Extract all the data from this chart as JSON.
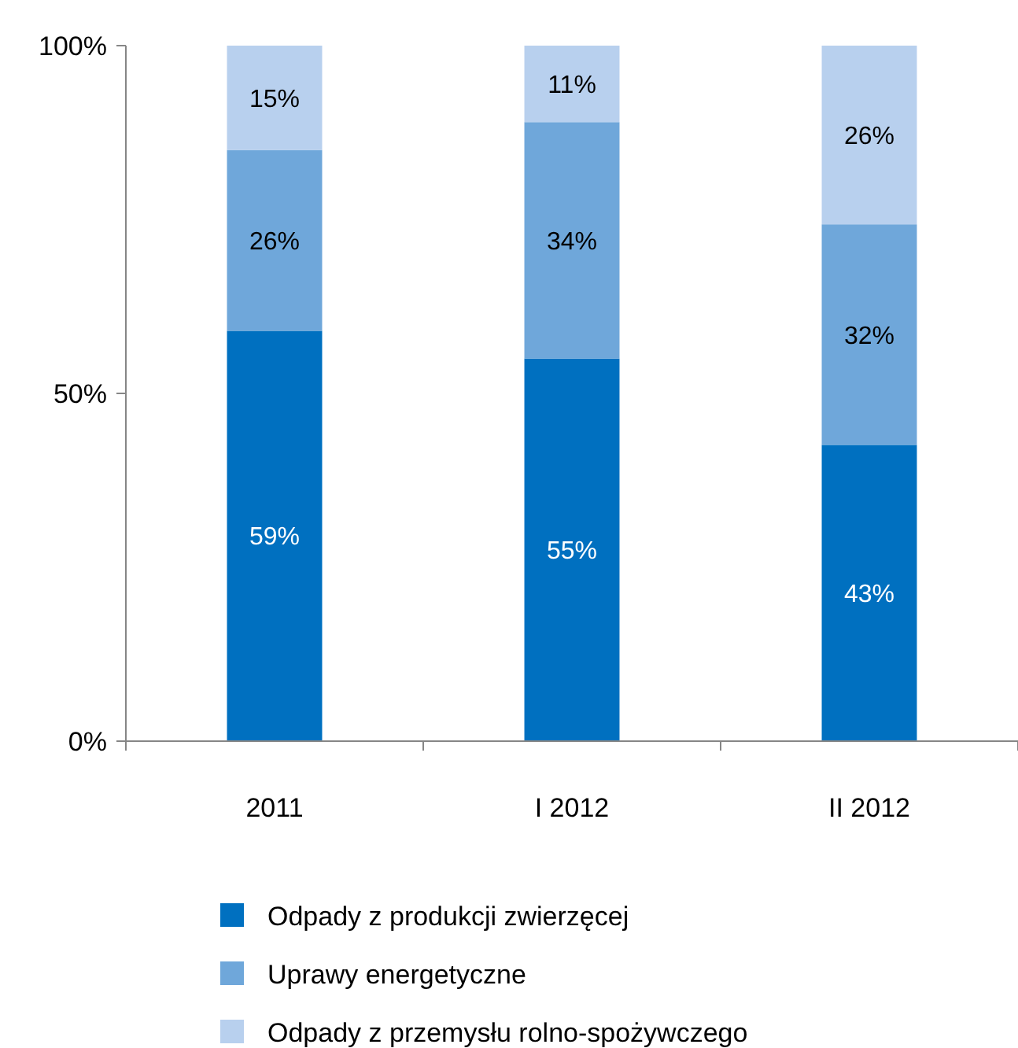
{
  "chart_data": {
    "type": "bar",
    "stacked": true,
    "categories": [
      "2011",
      "I 2012",
      "II 2012"
    ],
    "series": [
      {
        "name": "Odpady z produkcji zwierzęcej",
        "color": "#0070c0",
        "values": [
          59,
          55,
          42.6
        ],
        "value_labels": [
          "59%",
          "55%",
          "43%"
        ]
      },
      {
        "name": "Uprawy energetyczne",
        "color": "#6fa7da",
        "values": [
          26,
          34,
          31.7
        ],
        "value_labels": [
          "26%",
          "34%",
          "32%"
        ]
      },
      {
        "name": "Odpady z przemysłu rolno-spożywczego",
        "color": "#b8d0ee",
        "values": [
          15,
          11,
          25.7
        ],
        "value_labels": [
          "15%",
          "11%",
          "26%"
        ]
      }
    ],
    "ylim": [
      0,
      100
    ],
    "yticks": [
      {
        "value": 0,
        "label": "0%"
      },
      {
        "value": 50,
        "label": "50%"
      },
      {
        "value": 100,
        "label": "100%"
      }
    ],
    "legend": "bottom",
    "grid": false
  }
}
